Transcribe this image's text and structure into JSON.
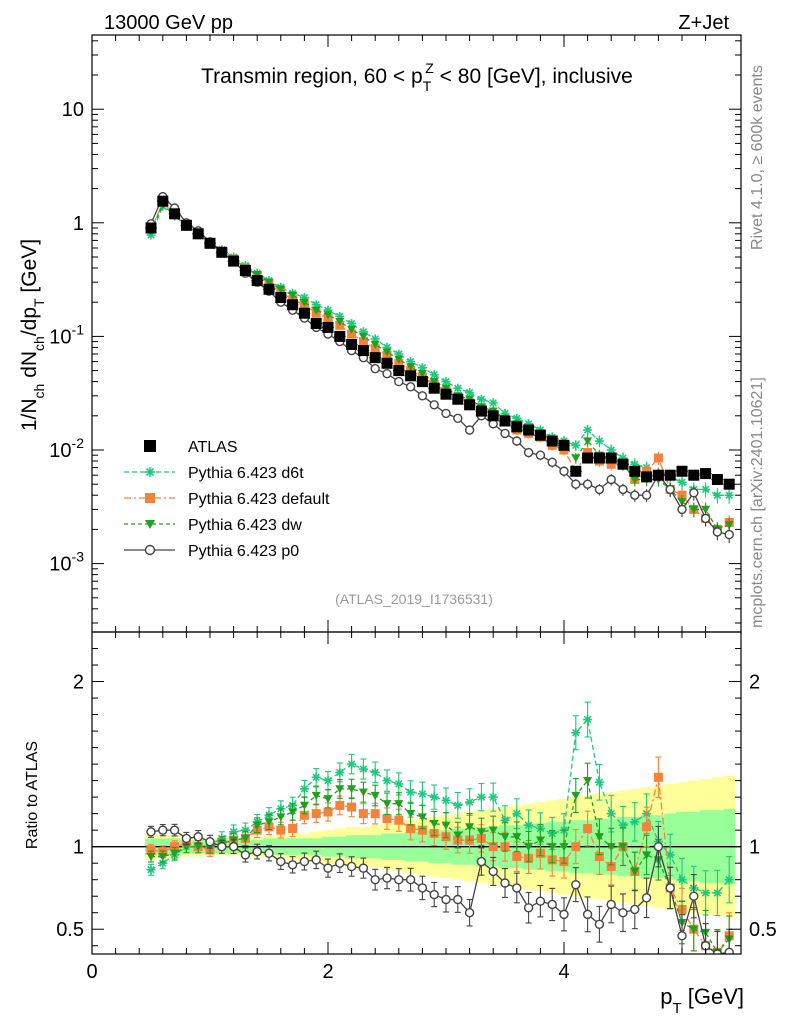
{
  "header": {
    "left": "13000 GeV pp",
    "right": "Z+Jet"
  },
  "side": {
    "rivet": "Rivet 4.1.0, ≥ 600k events",
    "mcplots": "mcplots.cern.ch [arXiv:2401.10621]"
  },
  "chart_data": [
    {
      "id": "main",
      "type": "scatter",
      "title": "Transmin region, 60 < p_T^Z < 80 [GeV], inclusive",
      "ylabel": "1/N_ch dN_ch/dp_T [GeV]",
      "yscale": "log",
      "ylim": [
        0.00025,
        45
      ],
      "xlim": [
        0,
        5.5
      ],
      "ytick_labels": [
        "10",
        "1",
        "10^-1",
        "10^-2",
        "10^-3"
      ],
      "ytick_values": [
        10,
        1,
        0.1,
        0.01,
        0.001
      ],
      "reference": "(ATLAS_2019_I1736531)",
      "x": [
        0.5,
        0.6,
        0.7,
        0.8,
        0.9,
        1.0,
        1.1,
        1.2,
        1.3,
        1.4,
        1.5,
        1.6,
        1.7,
        1.8,
        1.9,
        2.0,
        2.1,
        2.2,
        2.3,
        2.4,
        2.5,
        2.6,
        2.7,
        2.8,
        2.9,
        3.0,
        3.1,
        3.2,
        3.3,
        3.4,
        3.5,
        3.6,
        3.7,
        3.8,
        3.9,
        4.0,
        4.1,
        4.2,
        4.3,
        4.4,
        4.5,
        4.6,
        4.7,
        4.8,
        4.9,
        5.0,
        5.1,
        5.2,
        5.3,
        5.4
      ],
      "series": [
        {
          "name": "ATLAS",
          "values": [
            0.9,
            1.55,
            1.2,
            0.95,
            0.8,
            0.66,
            0.55,
            0.46,
            0.38,
            0.31,
            0.26,
            0.22,
            0.19,
            0.16,
            0.13,
            0.12,
            0.1,
            0.085,
            0.075,
            0.065,
            0.058,
            0.05,
            0.045,
            0.04,
            0.035,
            0.031,
            0.028,
            0.025,
            0.022,
            0.02,
            0.018,
            0.016,
            0.015,
            0.0135,
            0.012,
            0.011,
            0.0065,
            0.0085,
            0.0085,
            0.0085,
            0.0075,
            0.0065,
            0.0058,
            0.006,
            0.006,
            0.0065,
            0.006,
            0.0062,
            0.0055,
            0.005
          ]
        },
        {
          "name": "Pythia 6.423 d6t",
          "values": [
            0.78,
            1.4,
            1.15,
            0.95,
            0.8,
            0.67,
            0.58,
            0.5,
            0.42,
            0.36,
            0.31,
            0.27,
            0.24,
            0.22,
            0.19,
            0.17,
            0.15,
            0.13,
            0.11,
            0.095,
            0.08,
            0.07,
            0.06,
            0.053,
            0.046,
            0.04,
            0.035,
            0.032,
            0.028,
            0.026,
            0.021,
            0.019,
            0.017,
            0.015,
            0.013,
            0.012,
            0.011,
            0.015,
            0.012,
            0.01,
            0.0085,
            0.0075,
            0.007,
            0.0062,
            0.0058,
            0.0052,
            0.0045,
            0.0045,
            0.004,
            0.004
          ]
        },
        {
          "name": "Pythia 6.423 default",
          "values": [
            0.88,
            1.5,
            1.2,
            0.97,
            0.8,
            0.65,
            0.56,
            0.48,
            0.4,
            0.34,
            0.29,
            0.245,
            0.21,
            0.19,
            0.16,
            0.145,
            0.125,
            0.105,
            0.09,
            0.078,
            0.068,
            0.058,
            0.05,
            0.044,
            0.038,
            0.033,
            0.029,
            0.026,
            0.023,
            0.02,
            0.018,
            0.015,
            0.014,
            0.013,
            0.011,
            0.01,
            0.0065,
            0.0095,
            0.008,
            0.0075,
            0.0075,
            0.0055,
            0.0065,
            0.0085,
            0.0045,
            0.004,
            0.003,
            0.0025,
            0.002,
            0.0023
          ]
        },
        {
          "name": "Pythia 6.423 dw",
          "values": [
            0.85,
            1.45,
            1.15,
            0.95,
            0.8,
            0.66,
            0.56,
            0.48,
            0.4,
            0.35,
            0.3,
            0.26,
            0.23,
            0.2,
            0.17,
            0.155,
            0.135,
            0.115,
            0.1,
            0.085,
            0.073,
            0.063,
            0.054,
            0.047,
            0.04,
            0.035,
            0.03,
            0.028,
            0.024,
            0.022,
            0.019,
            0.017,
            0.015,
            0.014,
            0.012,
            0.011,
            0.0085,
            0.012,
            0.009,
            0.0085,
            0.0075,
            0.0055,
            0.0055,
            0.0055,
            0.0045,
            0.0035,
            0.003,
            0.003,
            0.002,
            0.0022
          ]
        },
        {
          "name": "Pythia 6.423 p0",
          "values": [
            0.98,
            1.7,
            1.35,
            1.0,
            0.85,
            0.68,
            0.55,
            0.46,
            0.36,
            0.3,
            0.25,
            0.2,
            0.17,
            0.145,
            0.12,
            0.105,
            0.09,
            0.075,
            0.065,
            0.052,
            0.047,
            0.04,
            0.036,
            0.03,
            0.025,
            0.021,
            0.019,
            0.015,
            0.02,
            0.017,
            0.014,
            0.012,
            0.0095,
            0.009,
            0.0078,
            0.0065,
            0.005,
            0.005,
            0.0045,
            0.0055,
            0.0045,
            0.004,
            0.004,
            0.006,
            0.0045,
            0.003,
            0.0042,
            0.0025,
            0.0019,
            0.0018
          ]
        }
      ]
    },
    {
      "id": "ratio",
      "type": "scatter",
      "ylabel": "Ratio to ATLAS",
      "xlabel": "p_T [GeV]",
      "ylim": [
        0.35,
        2.3
      ],
      "xlim": [
        0,
        5.5
      ],
      "ytick_labels": [
        "2",
        "1",
        "0.5"
      ],
      "ytick_values": [
        2,
        1,
        0.5
      ],
      "xtick_labels": [
        "0",
        "2",
        "4"
      ],
      "xtick_values": [
        0,
        2,
        4
      ],
      "band_stat": [
        0.05,
        0.05,
        0.05,
        0.04,
        0.04,
        0.04,
        0.04,
        0.04,
        0.04,
        0.04,
        0.05,
        0.05,
        0.05,
        0.05,
        0.05,
        0.06,
        0.06,
        0.07,
        0.07,
        0.07,
        0.08,
        0.08,
        0.09,
        0.09,
        0.1,
        0.1,
        0.11,
        0.11,
        0.12,
        0.12,
        0.13,
        0.13,
        0.14,
        0.14,
        0.15,
        0.15,
        0.16,
        0.16,
        0.17,
        0.17,
        0.18,
        0.18,
        0.19,
        0.19,
        0.2,
        0.21,
        0.21,
        0.22,
        0.22,
        0.23
      ],
      "band_total": [
        0.08,
        0.07,
        0.07,
        0.06,
        0.06,
        0.05,
        0.05,
        0.05,
        0.06,
        0.06,
        0.07,
        0.07,
        0.08,
        0.08,
        0.09,
        0.1,
        0.11,
        0.12,
        0.12,
        0.13,
        0.14,
        0.15,
        0.16,
        0.17,
        0.18,
        0.19,
        0.2,
        0.21,
        0.22,
        0.23,
        0.24,
        0.25,
        0.26,
        0.27,
        0.28,
        0.29,
        0.3,
        0.31,
        0.32,
        0.33,
        0.34,
        0.35,
        0.36,
        0.37,
        0.38,
        0.39,
        0.4,
        0.41,
        0.42,
        0.43
      ],
      "series": [
        {
          "name": "Pythia 6.423 d6t",
          "values": [
            0.86,
            0.9,
            0.95,
            1.0,
            1.0,
            1.01,
            1.05,
            1.09,
            1.1,
            1.15,
            1.19,
            1.23,
            1.25,
            1.35,
            1.42,
            1.4,
            1.45,
            1.5,
            1.47,
            1.45,
            1.4,
            1.38,
            1.33,
            1.32,
            1.3,
            1.28,
            1.25,
            1.27,
            1.3,
            1.3,
            1.16,
            1.2,
            1.13,
            1.11,
            1.08,
            1.1,
            1.69,
            1.77,
            1.39,
            1.2,
            1.13,
            1.15,
            1.2,
            1.03,
            0.95,
            0.8,
            0.75,
            0.72,
            0.72,
            0.8
          ]
        },
        {
          "name": "Pythia 6.423 default",
          "values": [
            0.98,
            0.97,
            1.0,
            1.02,
            1.0,
            0.98,
            1.02,
            1.04,
            1.05,
            1.1,
            1.12,
            1.1,
            1.11,
            1.19,
            1.2,
            1.21,
            1.25,
            1.24,
            1.2,
            1.2,
            1.17,
            1.16,
            1.11,
            1.1,
            1.08,
            1.06,
            1.04,
            1.04,
            1.05,
            1.0,
            1.0,
            0.94,
            0.93,
            0.96,
            0.92,
            0.91,
            1.0,
            1.11,
            0.94,
            0.88,
            1.0,
            0.85,
            1.12,
            1.42,
            0.75,
            0.62,
            0.5,
            0.4,
            0.36,
            0.46
          ]
        },
        {
          "name": "Pythia 6.423 dw",
          "values": [
            0.94,
            0.94,
            0.96,
            1.0,
            1.0,
            1.0,
            1.02,
            1.04,
            1.05,
            1.13,
            1.15,
            1.18,
            1.21,
            1.25,
            1.31,
            1.29,
            1.35,
            1.35,
            1.33,
            1.31,
            1.26,
            1.26,
            1.2,
            1.18,
            1.14,
            1.13,
            1.07,
            1.12,
            1.09,
            1.1,
            1.06,
            1.06,
            1.0,
            1.04,
            1.0,
            1.0,
            1.31,
            1.4,
            1.06,
            1.0,
            1.0,
            0.85,
            0.95,
            0.92,
            0.75,
            0.54,
            0.5,
            0.48,
            0.36,
            0.44
          ]
        },
        {
          "name": "Pythia 6.423 p0",
          "values": [
            1.09,
            1.1,
            1.1,
            1.05,
            1.06,
            1.03,
            1.0,
            1.0,
            0.95,
            0.97,
            0.96,
            0.91,
            0.89,
            0.91,
            0.92,
            0.87,
            0.9,
            0.88,
            0.87,
            0.8,
            0.81,
            0.8,
            0.8,
            0.75,
            0.71,
            0.68,
            0.68,
            0.6,
            0.91,
            0.85,
            0.78,
            0.75,
            0.63,
            0.67,
            0.65,
            0.59,
            0.77,
            0.59,
            0.53,
            0.65,
            0.6,
            0.62,
            0.69,
            1.0,
            0.75,
            0.46,
            0.7,
            0.4,
            0.35,
            0.36
          ]
        }
      ]
    }
  ],
  "styles": {
    "ATLAS": {
      "color": "#000000",
      "marker": "square",
      "dash": "",
      "legend": "ATLAS"
    },
    "Pythia 6.423 d6t": {
      "color": "#1fc87f",
      "marker": "star",
      "dash": "5 3",
      "legend": "Pythia 6.423 d6t"
    },
    "Pythia 6.423 default": {
      "color": "#f5823a",
      "marker": "square",
      "dash": "7 3 2 3",
      "legend": "Pythia 6.423 default"
    },
    "Pythia 6.423 dw": {
      "color": "#20a020",
      "marker": "triangle-down",
      "dash": "4 3",
      "legend": "Pythia 6.423 dw"
    },
    "Pythia 6.423 p0": {
      "color": "#444444",
      "marker": "circle",
      "dash": "",
      "legend": "Pythia 6.423 p0"
    },
    "band_total_color": "#ffff99",
    "band_stat_color": "#99ff99"
  }
}
